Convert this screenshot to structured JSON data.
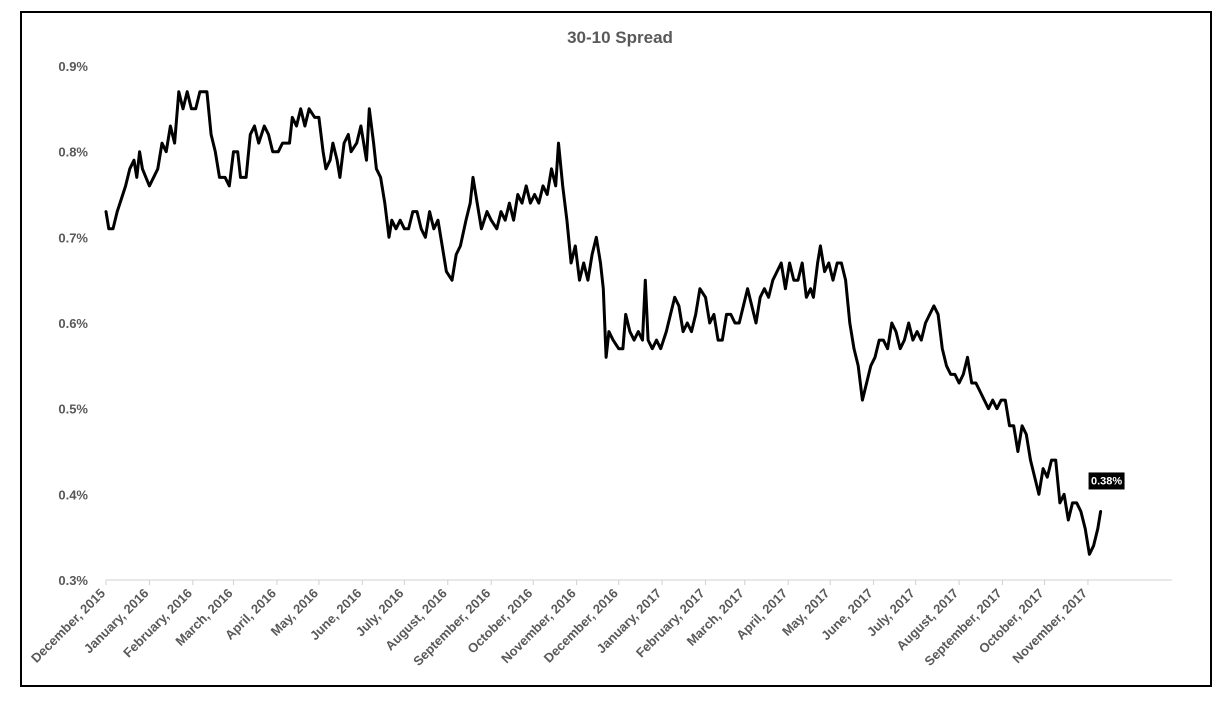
{
  "chart_data": {
    "type": "line",
    "title": "30-10  Spread",
    "xlabel": "",
    "ylabel": "",
    "ylim": [
      0.3,
      0.9
    ],
    "yticks": [
      "0.3%",
      "0.4%",
      "0.5%",
      "0.6%",
      "0.7%",
      "0.8%",
      "0.9%"
    ],
    "ytick_values": [
      0.3,
      0.4,
      0.5,
      0.6,
      0.7,
      0.8,
      0.9
    ],
    "xlim": [
      "2015-12-01",
      "2017-12-31"
    ],
    "xticks": [
      "December, 2015",
      "January, 2016",
      "February, 2016",
      "March, 2016",
      "April, 2016",
      "May, 2016",
      "June, 2016",
      "July, 2016",
      "August, 2016",
      "September, 2016",
      "October, 2016",
      "November, 2016",
      "December, 2016",
      "January, 2017",
      "February, 2017",
      "March, 2017",
      "April, 2017",
      "May, 2017",
      "June, 2017",
      "July, 2017",
      "August, 2017",
      "September, 2017",
      "October, 2017",
      "November, 2017"
    ],
    "xtick_dates": [
      "2015-12-01",
      "2016-01-01",
      "2016-02-01",
      "2016-03-01",
      "2016-04-01",
      "2016-05-01",
      "2016-06-01",
      "2016-07-01",
      "2016-08-01",
      "2016-09-01",
      "2016-10-01",
      "2016-11-01",
      "2016-12-01",
      "2017-01-01",
      "2017-02-01",
      "2017-03-01",
      "2017-04-01",
      "2017-05-01",
      "2017-06-01",
      "2017-07-01",
      "2017-08-01",
      "2017-09-01",
      "2017-10-01",
      "2017-11-01"
    ],
    "grid": false,
    "legend": "none",
    "line_color": "#000000",
    "series": [
      {
        "values": [
          [
            "2015-12-01",
            0.73
          ],
          [
            "2015-12-03",
            0.71
          ],
          [
            "2015-12-06",
            0.71
          ],
          [
            "2015-12-09",
            0.73
          ],
          [
            "2015-12-11",
            0.74
          ],
          [
            "2015-12-15",
            0.76
          ],
          [
            "2015-12-18",
            0.78
          ],
          [
            "2015-12-21",
            0.79
          ],
          [
            "2015-12-23",
            0.77
          ],
          [
            "2015-12-25",
            0.8
          ],
          [
            "2015-12-27",
            0.78
          ],
          [
            "2016-01-01",
            0.76
          ],
          [
            "2016-01-04",
            0.77
          ],
          [
            "2016-01-07",
            0.78
          ],
          [
            "2016-01-10",
            0.81
          ],
          [
            "2016-01-13",
            0.8
          ],
          [
            "2016-01-16",
            0.83
          ],
          [
            "2016-01-19",
            0.81
          ],
          [
            "2016-01-22",
            0.87
          ],
          [
            "2016-01-25",
            0.85
          ],
          [
            "2016-01-28",
            0.87
          ],
          [
            "2016-01-31",
            0.85
          ],
          [
            "2016-02-03",
            0.85
          ],
          [
            "2016-02-06",
            0.87
          ],
          [
            "2016-02-11",
            0.87
          ],
          [
            "2016-02-14",
            0.82
          ],
          [
            "2016-02-17",
            0.8
          ],
          [
            "2016-02-20",
            0.77
          ],
          [
            "2016-02-24",
            0.77
          ],
          [
            "2016-02-27",
            0.76
          ],
          [
            "2016-03-01",
            0.8
          ],
          [
            "2016-03-04",
            0.8
          ],
          [
            "2016-03-06",
            0.77
          ],
          [
            "2016-03-10",
            0.77
          ],
          [
            "2016-03-13",
            0.82
          ],
          [
            "2016-03-16",
            0.83
          ],
          [
            "2016-03-19",
            0.81
          ],
          [
            "2016-03-23",
            0.83
          ],
          [
            "2016-03-26",
            0.82
          ],
          [
            "2016-03-29",
            0.8
          ],
          [
            "2016-04-02",
            0.8
          ],
          [
            "2016-04-05",
            0.81
          ],
          [
            "2016-04-10",
            0.81
          ],
          [
            "2016-04-12",
            0.84
          ],
          [
            "2016-04-15",
            0.83
          ],
          [
            "2016-04-18",
            0.85
          ],
          [
            "2016-04-21",
            0.83
          ],
          [
            "2016-04-24",
            0.85
          ],
          [
            "2016-04-28",
            0.84
          ],
          [
            "2016-05-01",
            0.84
          ],
          [
            "2016-05-04",
            0.8
          ],
          [
            "2016-05-06",
            0.78
          ],
          [
            "2016-05-09",
            0.79
          ],
          [
            "2016-05-11",
            0.81
          ],
          [
            "2016-05-14",
            0.79
          ],
          [
            "2016-05-16",
            0.77
          ],
          [
            "2016-05-19",
            0.81
          ],
          [
            "2016-05-22",
            0.82
          ],
          [
            "2016-05-24",
            0.8
          ],
          [
            "2016-05-28",
            0.81
          ],
          [
            "2016-05-31",
            0.83
          ],
          [
            "2016-06-03",
            0.8
          ],
          [
            "2016-06-04",
            0.79
          ],
          [
            "2016-06-06",
            0.85
          ],
          [
            "2016-06-09",
            0.81
          ],
          [
            "2016-06-11",
            0.78
          ],
          [
            "2016-06-14",
            0.77
          ],
          [
            "2016-06-17",
            0.74
          ],
          [
            "2016-06-20",
            0.7
          ],
          [
            "2016-06-22",
            0.72
          ],
          [
            "2016-06-25",
            0.71
          ],
          [
            "2016-06-28",
            0.72
          ],
          [
            "2016-07-01",
            0.71
          ],
          [
            "2016-07-04",
            0.71
          ],
          [
            "2016-07-07",
            0.73
          ],
          [
            "2016-07-10",
            0.73
          ],
          [
            "2016-07-13",
            0.71
          ],
          [
            "2016-07-16",
            0.7
          ],
          [
            "2016-07-19",
            0.73
          ],
          [
            "2016-07-22",
            0.71
          ],
          [
            "2016-07-25",
            0.72
          ],
          [
            "2016-07-28",
            0.69
          ],
          [
            "2016-07-31",
            0.66
          ],
          [
            "2016-08-04",
            0.65
          ],
          [
            "2016-08-07",
            0.68
          ],
          [
            "2016-08-10",
            0.69
          ],
          [
            "2016-08-14",
            0.72
          ],
          [
            "2016-08-17",
            0.74
          ],
          [
            "2016-08-19",
            0.77
          ],
          [
            "2016-08-22",
            0.74
          ],
          [
            "2016-08-25",
            0.71
          ],
          [
            "2016-08-29",
            0.73
          ],
          [
            "2016-09-01",
            0.72
          ],
          [
            "2016-09-05",
            0.71
          ],
          [
            "2016-09-08",
            0.73
          ],
          [
            "2016-09-11",
            0.72
          ],
          [
            "2016-09-14",
            0.74
          ],
          [
            "2016-09-17",
            0.72
          ],
          [
            "2016-09-20",
            0.75
          ],
          [
            "2016-09-23",
            0.74
          ],
          [
            "2016-09-26",
            0.76
          ],
          [
            "2016-09-29",
            0.74
          ],
          [
            "2016-10-02",
            0.75
          ],
          [
            "2016-10-05",
            0.74
          ],
          [
            "2016-10-08",
            0.76
          ],
          [
            "2016-10-11",
            0.75
          ],
          [
            "2016-10-14",
            0.78
          ],
          [
            "2016-10-17",
            0.76
          ],
          [
            "2016-10-19",
            0.81
          ],
          [
            "2016-10-22",
            0.76
          ],
          [
            "2016-10-25",
            0.72
          ],
          [
            "2016-10-28",
            0.67
          ],
          [
            "2016-10-31",
            0.69
          ],
          [
            "2016-11-03",
            0.65
          ],
          [
            "2016-11-06",
            0.67
          ],
          [
            "2016-11-09",
            0.65
          ],
          [
            "2016-11-12",
            0.68
          ],
          [
            "2016-11-15",
            0.7
          ],
          [
            "2016-11-18",
            0.67
          ],
          [
            "2016-11-20",
            0.64
          ],
          [
            "2016-11-22",
            0.56
          ],
          [
            "2016-11-24",
            0.59
          ],
          [
            "2016-11-27",
            0.58
          ],
          [
            "2016-12-01",
            0.57
          ],
          [
            "2016-12-04",
            0.57
          ],
          [
            "2016-12-06",
            0.61
          ],
          [
            "2016-12-09",
            0.59
          ],
          [
            "2016-12-12",
            0.58
          ],
          [
            "2016-12-15",
            0.59
          ],
          [
            "2016-12-18",
            0.58
          ],
          [
            "2016-12-20",
            0.65
          ],
          [
            "2016-12-22",
            0.58
          ],
          [
            "2016-12-25",
            0.57
          ],
          [
            "2016-12-28",
            0.58
          ],
          [
            "2016-12-31",
            0.57
          ],
          [
            "2017-01-04",
            0.59
          ],
          [
            "2017-01-07",
            0.61
          ],
          [
            "2017-01-10",
            0.63
          ],
          [
            "2017-01-13",
            0.62
          ],
          [
            "2017-01-16",
            0.59
          ],
          [
            "2017-01-19",
            0.6
          ],
          [
            "2017-01-22",
            0.59
          ],
          [
            "2017-01-25",
            0.61
          ],
          [
            "2017-01-28",
            0.64
          ],
          [
            "2017-02-01",
            0.63
          ],
          [
            "2017-02-04",
            0.6
          ],
          [
            "2017-02-07",
            0.61
          ],
          [
            "2017-02-10",
            0.58
          ],
          [
            "2017-02-13",
            0.58
          ],
          [
            "2017-02-16",
            0.61
          ],
          [
            "2017-02-19",
            0.61
          ],
          [
            "2017-02-22",
            0.6
          ],
          [
            "2017-02-25",
            0.6
          ],
          [
            "2017-02-28",
            0.62
          ],
          [
            "2017-03-03",
            0.64
          ],
          [
            "2017-03-06",
            0.62
          ],
          [
            "2017-03-09",
            0.6
          ],
          [
            "2017-03-12",
            0.63
          ],
          [
            "2017-03-15",
            0.64
          ],
          [
            "2017-03-18",
            0.63
          ],
          [
            "2017-03-21",
            0.65
          ],
          [
            "2017-03-24",
            0.66
          ],
          [
            "2017-03-27",
            0.67
          ],
          [
            "2017-03-30",
            0.64
          ],
          [
            "2017-04-02",
            0.67
          ],
          [
            "2017-04-05",
            0.65
          ],
          [
            "2017-04-08",
            0.65
          ],
          [
            "2017-04-11",
            0.67
          ],
          [
            "2017-04-14",
            0.63
          ],
          [
            "2017-04-17",
            0.64
          ],
          [
            "2017-04-19",
            0.63
          ],
          [
            "2017-04-22",
            0.67
          ],
          [
            "2017-04-24",
            0.69
          ],
          [
            "2017-04-27",
            0.66
          ],
          [
            "2017-04-30",
            0.67
          ],
          [
            "2017-05-03",
            0.65
          ],
          [
            "2017-05-06",
            0.67
          ],
          [
            "2017-05-09",
            0.67
          ],
          [
            "2017-05-12",
            0.65
          ],
          [
            "2017-05-15",
            0.6
          ],
          [
            "2017-05-18",
            0.57
          ],
          [
            "2017-05-21",
            0.55
          ],
          [
            "2017-05-24",
            0.51
          ],
          [
            "2017-05-27",
            0.53
          ],
          [
            "2017-05-30",
            0.55
          ],
          [
            "2017-06-02",
            0.56
          ],
          [
            "2017-06-05",
            0.58
          ],
          [
            "2017-06-08",
            0.58
          ],
          [
            "2017-06-11",
            0.57
          ],
          [
            "2017-06-14",
            0.6
          ],
          [
            "2017-06-17",
            0.59
          ],
          [
            "2017-06-20",
            0.57
          ],
          [
            "2017-06-23",
            0.58
          ],
          [
            "2017-06-26",
            0.6
          ],
          [
            "2017-06-29",
            0.58
          ],
          [
            "2017-07-02",
            0.59
          ],
          [
            "2017-07-05",
            0.58
          ],
          [
            "2017-07-08",
            0.6
          ],
          [
            "2017-07-11",
            0.61
          ],
          [
            "2017-07-14",
            0.62
          ],
          [
            "2017-07-17",
            0.61
          ],
          [
            "2017-07-20",
            0.57
          ],
          [
            "2017-07-23",
            0.55
          ],
          [
            "2017-07-26",
            0.54
          ],
          [
            "2017-07-29",
            0.54
          ],
          [
            "2017-08-01",
            0.53
          ],
          [
            "2017-08-04",
            0.54
          ],
          [
            "2017-08-07",
            0.56
          ],
          [
            "2017-08-10",
            0.53
          ],
          [
            "2017-08-13",
            0.53
          ],
          [
            "2017-08-16",
            0.52
          ],
          [
            "2017-08-19",
            0.51
          ],
          [
            "2017-08-22",
            0.5
          ],
          [
            "2017-08-25",
            0.51
          ],
          [
            "2017-08-28",
            0.5
          ],
          [
            "2017-08-31",
            0.51
          ],
          [
            "2017-09-03",
            0.51
          ],
          [
            "2017-09-06",
            0.48
          ],
          [
            "2017-09-09",
            0.48
          ],
          [
            "2017-09-12",
            0.45
          ],
          [
            "2017-09-15",
            0.48
          ],
          [
            "2017-09-18",
            0.47
          ],
          [
            "2017-09-21",
            0.44
          ],
          [
            "2017-09-24",
            0.42
          ],
          [
            "2017-09-27",
            0.4
          ],
          [
            "2017-09-30",
            0.43
          ],
          [
            "2017-10-03",
            0.42
          ],
          [
            "2017-10-06",
            0.44
          ],
          [
            "2017-10-09",
            0.44
          ],
          [
            "2017-10-12",
            0.39
          ],
          [
            "2017-10-15",
            0.4
          ],
          [
            "2017-10-18",
            0.37
          ],
          [
            "2017-10-21",
            0.39
          ],
          [
            "2017-10-24",
            0.39
          ],
          [
            "2017-10-27",
            0.38
          ],
          [
            "2017-10-30",
            0.36
          ],
          [
            "2017-11-02",
            0.33
          ],
          [
            "2017-11-05",
            0.34
          ],
          [
            "2017-11-08",
            0.36
          ],
          [
            "2017-11-10",
            0.38
          ]
        ]
      }
    ],
    "annotations": [
      {
        "text": "0.38%",
        "x": "2017-11-10",
        "y": 0.38
      }
    ]
  }
}
